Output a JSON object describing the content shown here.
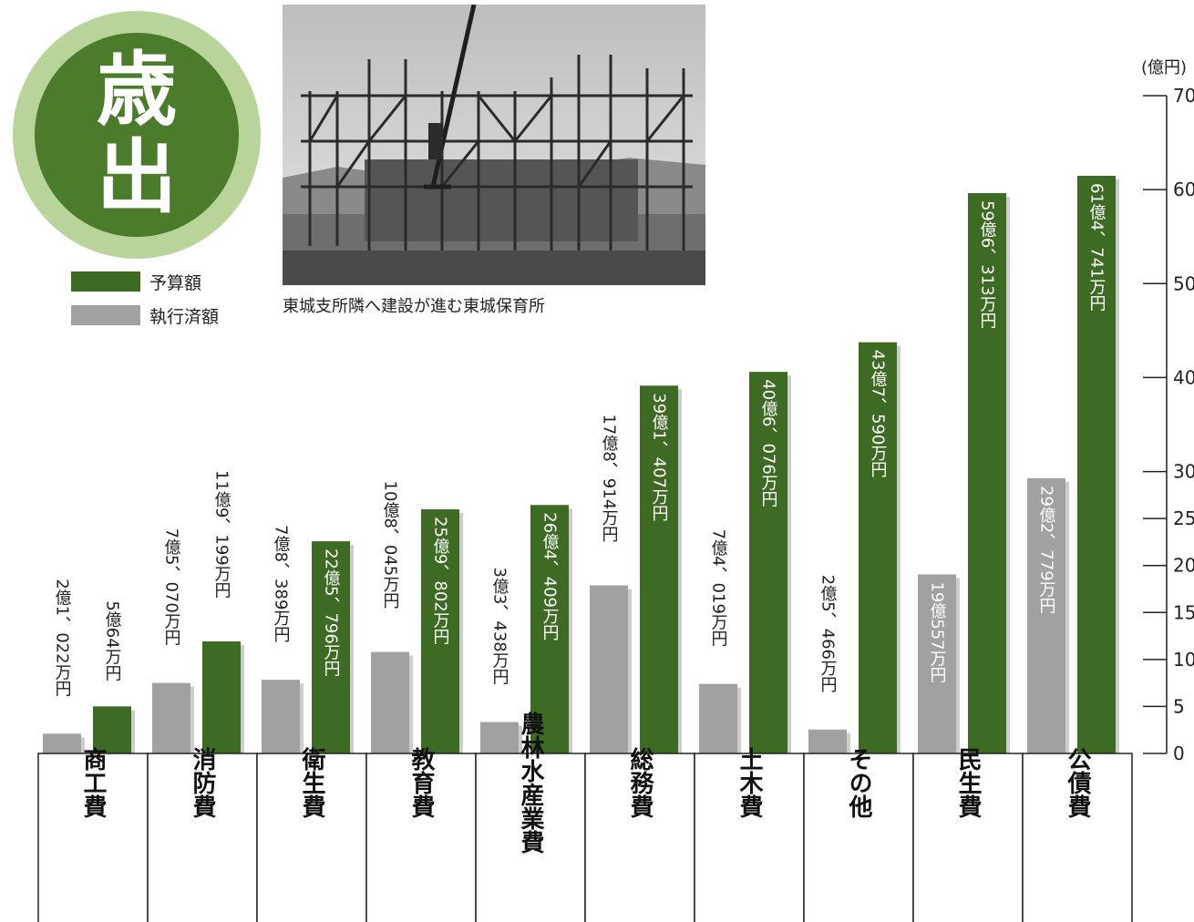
{
  "heading": {
    "char1": "歳",
    "char2": "出"
  },
  "photo_caption": "東城支所隣へ建設が進む東城保育所",
  "legend": [
    {
      "label": "予算額",
      "color": "#3d6b23"
    },
    {
      "label": "執行済額",
      "color": "#a1a1a1"
    }
  ],
  "chart_data": {
    "type": "bar",
    "unit_label": "(億円)",
    "ylim": [
      0,
      70
    ],
    "yticks": [
      "0",
      "5",
      "10",
      "15",
      "20",
      "25",
      "30",
      "40",
      "50",
      "60",
      "70"
    ],
    "categories": [
      "商工費",
      "消防費",
      "衛生費",
      "教育費",
      "農林水産業費",
      "総務費",
      "土木費",
      "その他",
      "民生費",
      "公債費"
    ],
    "series": [
      {
        "name": "執行済額",
        "color": "#a1a1a1",
        "values": [
          2.1022,
          7.507,
          7.8389,
          10.8045,
          3.3438,
          17.8914,
          7.4019,
          2.5466,
          19.0557,
          29.2779
        ],
        "labels": [
          "2億1、022万円",
          "7億5、070万円",
          "7億8、389万円",
          "10億8、045万円",
          "3億3、438万円",
          "17億8、914万円",
          "7億4、019万円",
          "2億5、466万円",
          "19億557万円",
          "29億2、779万円"
        ]
      },
      {
        "name": "予算額",
        "color": "#3d6b23",
        "values": [
          5.0064,
          11.9199,
          22.5796,
          25.9802,
          26.4409,
          39.1407,
          40.6076,
          43.759,
          59.6313,
          61.4741
        ],
        "labels": [
          "5億64万円",
          "11億9、199万円",
          "22億5、796万円",
          "25億9、802万円",
          "26億4、409万円",
          "39億1、407万円",
          "40億6、076万円",
          "43億7、590万円",
          "59億6、313万円",
          "61億4、741万円"
        ]
      }
    ],
    "legend_position": "top-left",
    "grid": false
  }
}
